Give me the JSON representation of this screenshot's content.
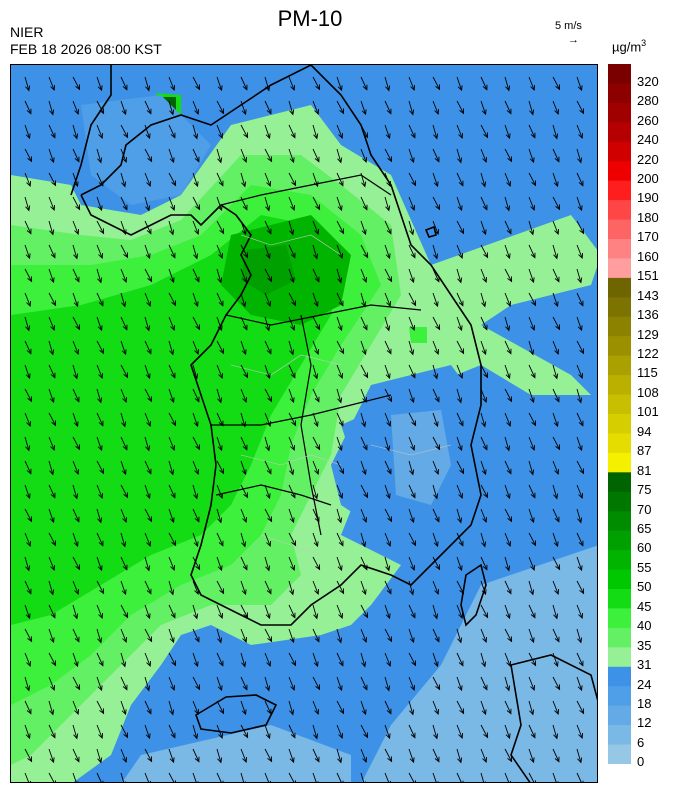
{
  "header": {
    "agency": "NIER",
    "timestamp": "FEB 18 2026 08:00 KST",
    "title": "PM-10",
    "wind_reference": {
      "speed_label": "5 m/s",
      "arrow_glyph": "→"
    },
    "unit_base": "µg/m",
    "unit_exponent": "3"
  },
  "legend": {
    "bins": [
      {
        "label": "320",
        "color": "#7a0000"
      },
      {
        "label": "280",
        "color": "#8c0000"
      },
      {
        "label": "260",
        "color": "#a00000"
      },
      {
        "label": "240",
        "color": "#b40000"
      },
      {
        "label": "220",
        "color": "#d00000"
      },
      {
        "label": "200",
        "color": "#ee0000"
      },
      {
        "label": "190",
        "color": "#ff1e1e"
      },
      {
        "label": "180",
        "color": "#ff4646"
      },
      {
        "label": "170",
        "color": "#ff6464"
      },
      {
        "label": "160",
        "color": "#ff8282"
      },
      {
        "label": "151",
        "color": "#ff9e9e"
      },
      {
        "label": "143",
        "color": "#6e6400"
      },
      {
        "label": "136",
        "color": "#7d7300"
      },
      {
        "label": "129",
        "color": "#8c8200"
      },
      {
        "label": "122",
        "color": "#9b9100"
      },
      {
        "label": "115",
        "color": "#aaa000"
      },
      {
        "label": "108",
        "color": "#b9b000"
      },
      {
        "label": "101",
        "color": "#c8bf00"
      },
      {
        "label": "94",
        "color": "#d7ce00"
      },
      {
        "label": "87",
        "color": "#e6dd00"
      },
      {
        "label": "81",
        "color": "#f5f000"
      },
      {
        "label": "75",
        "color": "#006400"
      },
      {
        "label": "70",
        "color": "#007800"
      },
      {
        "label": "65",
        "color": "#008c00"
      },
      {
        "label": "60",
        "color": "#00a000"
      },
      {
        "label": "55",
        "color": "#00b400"
      },
      {
        "label": "50",
        "color": "#00c800"
      },
      {
        "label": "45",
        "color": "#14dc14"
      },
      {
        "label": "40",
        "color": "#3cf03c"
      },
      {
        "label": "35",
        "color": "#64f064"
      },
      {
        "label": "31",
        "color": "#96f096"
      },
      {
        "label": "24",
        "color": "#3d92e8"
      },
      {
        "label": "18",
        "color": "#4f9ee8"
      },
      {
        "label": "12",
        "color": "#64aae6"
      },
      {
        "label": "6",
        "color": "#7ab8e6"
      },
      {
        "label": "0",
        "color": "#96c8e6"
      }
    ]
  },
  "map": {
    "field_colors": {
      "sea_base": "#3d92e8",
      "sea_light": "#7ab8e6",
      "green_low": "#96f096",
      "green_mid": "#64f064",
      "green_high": "#3cf03c",
      "green_core": "#14dc14",
      "green_dark": "#00a000",
      "border_line": "#000000",
      "district_line": "#c8c8c8",
      "wind_arrow": "#000000"
    },
    "wind_direction": "north-northwest"
  }
}
